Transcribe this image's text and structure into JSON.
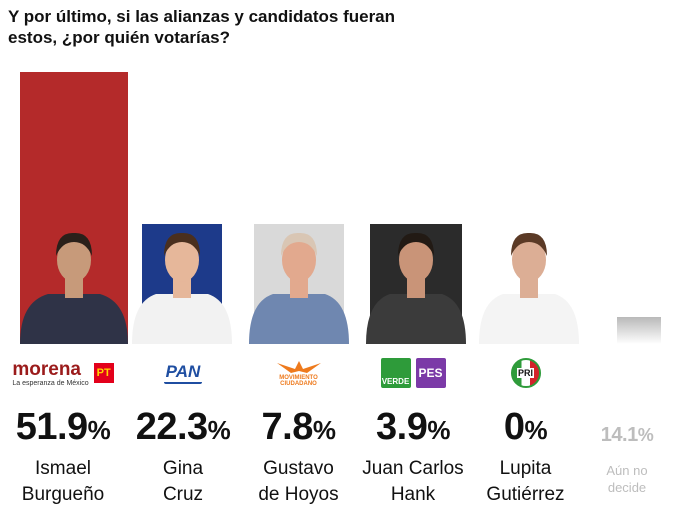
{
  "title": "Y por último, si las alianzas y candidatos fueran estos, ¿por quién votarías?",
  "chart_data": {
    "type": "bar",
    "title": "Y por último, si las alianzas y candidatos fueran estos, ¿por quién votarías?",
    "unit": "%",
    "ylim": [
      0,
      51.9
    ],
    "categories": [
      "Ismael Burgueño",
      "Gina Cruz",
      "Gustavo de Hoyos",
      "Juan Carlos Hank",
      "Lupita Gutiérrez",
      "Aún no decide"
    ],
    "values": [
      51.9,
      22.3,
      7.8,
      3.9,
      0,
      14.1
    ],
    "value_labels": [
      "51.9",
      "22.3",
      "7.8",
      "3.9",
      "0",
      "14.1"
    ],
    "colors": [
      "#b42a2a",
      "#1d3a8a",
      "#d9d9d9",
      "#2b2b2b",
      "#ffffff",
      "#b9b9b9"
    ],
    "candidates": [
      {
        "line1": "Ismael",
        "line2": "Burgueño",
        "logos": [
          "morena",
          "pt"
        ]
      },
      {
        "line1": "Gina",
        "line2": "Cruz",
        "logos": [
          "pan"
        ]
      },
      {
        "line1": "Gustavo",
        "line2": "de Hoyos",
        "logos": [
          "mc"
        ]
      },
      {
        "line1": "Juan Carlos",
        "line2": "Hank",
        "logos": [
          "verde",
          "pes"
        ]
      },
      {
        "line1": "Lupita",
        "line2": "Gutiérrez",
        "logos": [
          "pri"
        ]
      },
      {
        "line1": "Aún no",
        "line2": "decide",
        "logos": []
      }
    ]
  },
  "logos": {
    "morena": {
      "text": "morena",
      "subtitle": "La esperanza de México",
      "color": "#9b1b1b"
    },
    "pt": {
      "text": "PT",
      "color": "#e3001b"
    },
    "pan": {
      "text": "PAN",
      "color": "#1f4ea1"
    },
    "mc": {
      "text": "MOVIMIENTO CIUDADANO",
      "color": "#ee7a1d"
    },
    "verde": {
      "text": "VERDE",
      "color": "#2e9b3a"
    },
    "pes": {
      "text": "PES",
      "color": "#7b3aa7"
    },
    "pri": {
      "text": "PRI",
      "color": "#d3222a"
    }
  }
}
